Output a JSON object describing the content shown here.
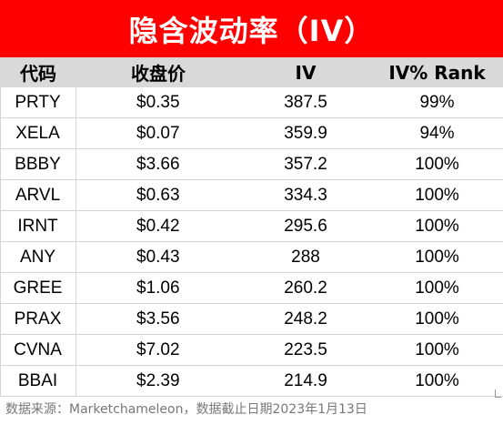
{
  "title": "隐含波动率（IV）",
  "headers": [
    "代码",
    "收盘价",
    "IV",
    "IV% Rank"
  ],
  "rows": [
    {
      "ticker": "PRTY",
      "price": "$0.35",
      "iv": "387.5",
      "rank": "99%"
    },
    {
      "ticker": "XELA",
      "price": "$0.07",
      "iv": "359.9",
      "rank": "94%"
    },
    {
      "ticker": "BBBY",
      "price": "$3.66",
      "iv": "357.2",
      "rank": "100%"
    },
    {
      "ticker": "ARVL",
      "price": "$0.63",
      "iv": "334.3",
      "rank": "100%"
    },
    {
      "ticker": "IRNT",
      "price": "$0.42",
      "iv": "295.6",
      "rank": "100%"
    },
    {
      "ticker": "ANY",
      "price": "$0.43",
      "iv": "288",
      "rank": "100%"
    },
    {
      "ticker": "GREE",
      "price": "$1.06",
      "iv": "260.2",
      "rank": "100%"
    },
    {
      "ticker": "PRAX",
      "price": "$3.56",
      "iv": "248.2",
      "rank": "100%"
    },
    {
      "ticker": "CVNA",
      "price": "$7.02",
      "iv": "223.5",
      "rank": "100%"
    },
    {
      "ticker": "BBAI",
      "price": "$2.39",
      "iv": "214.9",
      "rank": "100%"
    }
  ],
  "footer": "数据来源：Marketchameleon，数据截止日期2023年1月13日",
  "colors": {
    "title_bg": "#ff0000",
    "header_bg": "#d9d9d9",
    "grid": "#d4d4d4",
    "footer_text": "#777777"
  }
}
